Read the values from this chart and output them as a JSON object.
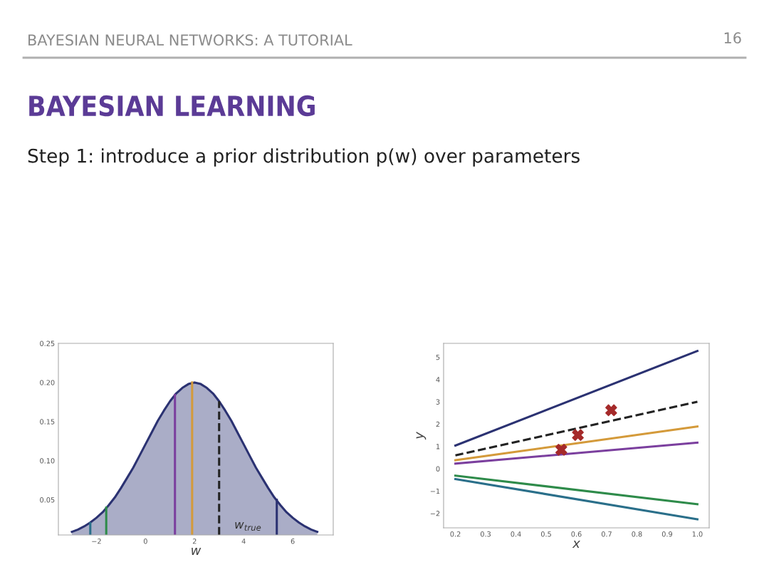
{
  "chart_data": [
    {
      "type": "area",
      "title": "BAYESIAN LEARNING",
      "subtitle": "Step 1: introduce a prior distribution p(w) over parameters",
      "annotations": [
        "BAYESIAN NEURAL NETWORKS: A TUTORIAL",
        "16",
        "w$_{true}$"
      ],
      "xlabel": "w",
      "x": [
        -3,
        -2.75,
        -2.5,
        -2.25,
        -2,
        -1.75,
        -1.5,
        -1.25,
        -1,
        -0.75,
        -0.5,
        -0.25,
        0,
        0.25,
        0.5,
        0.75,
        1,
        1.25,
        1.5,
        1.75,
        2,
        2.25,
        2.5,
        2.75,
        3,
        3.25,
        3.5,
        3.75,
        4,
        4.25,
        4.5,
        4.75,
        5,
        5.25,
        5.5,
        5.75,
        6,
        6.25,
        6.5,
        6.75,
        7
      ],
      "series": [
        {
          "color": "#2b3272",
          "values": [
            0.009,
            0.012,
            0.016,
            0.021,
            0.027,
            0.034,
            0.043,
            0.053,
            0.065,
            0.078,
            0.091,
            0.106,
            0.121,
            0.136,
            0.151,
            0.164,
            0.176,
            0.186,
            0.193,
            0.198,
            0.2,
            0.198,
            0.193,
            0.186,
            0.176,
            0.164,
            0.151,
            0.136,
            0.121,
            0.106,
            0.091,
            0.078,
            0.065,
            0.053,
            0.043,
            0.034,
            0.027,
            0.021,
            0.016,
            0.012,
            0.009
          ]
        },
        {
          "type": "line",
          "color": "#2a6f8a",
          "x": [
            -2.25,
            -2.25
          ],
          "values": [
            0.005,
            0.02
          ]
        },
        {
          "type": "line",
          "color": "#2e8b4a",
          "x": [
            -1.6,
            -1.6
          ],
          "values": [
            0.005,
            0.04
          ]
        },
        {
          "type": "line",
          "color": "#7b3f9e",
          "x": [
            1.2,
            1.2
          ],
          "values": [
            0.005,
            0.184
          ]
        },
        {
          "type": "line",
          "color": "#d49a3a",
          "x": [
            1.9,
            1.9
          ],
          "values": [
            0.005,
            0.2
          ]
        },
        {
          "type": "line",
          "color": "#222222",
          "x": [
            3.0,
            3.0
          ],
          "values": [
            0.005,
            0.176
          ],
          "line_style": "dashed"
        },
        {
          "type": "line",
          "color": "#2b3272",
          "x": [
            5.35,
            5.35
          ],
          "values": [
            0.005,
            0.05
          ]
        }
      ],
      "line_style": "solid",
      "xlim": [
        -3.55,
        7.65
      ],
      "ylim": [
        0.005,
        0.25
      ],
      "xticks": [
        {
          "value": -2,
          "label": "−2"
        },
        0,
        2,
        4,
        6
      ],
      "yticks": [
        0.05,
        {
          "value": 0.1,
          "label": "0.10"
        },
        0.15,
        {
          "value": 0.2,
          "label": "0.20"
        },
        0.25
      ],
      "grid": false,
      "legend": false
    },
    {
      "type": "line",
      "xlabel": "x",
      "ylabel": "y",
      "line_style": "solid",
      "marker": "none",
      "series": [
        {
          "color": "#2b3272",
          "x": [
            0.2,
            1.0
          ],
          "values": [
            1.04,
            5.28
          ]
        },
        {
          "color": "#222222",
          "x": [
            0.2,
            1.0
          ],
          "values": [
            0.6,
            3.0
          ],
          "line_style": "dashed"
        },
        {
          "color": "#d49a3a",
          "x": [
            0.2,
            1.0
          ],
          "values": [
            0.38,
            1.89
          ]
        },
        {
          "color": "#7b3f9e",
          "x": [
            0.2,
            1.0
          ],
          "values": [
            0.23,
            1.17
          ]
        },
        {
          "color": "#2e8b4a",
          "x": [
            0.2,
            1.0
          ],
          "values": [
            -0.31,
            -1.59
          ]
        },
        {
          "color": "#2a6f8a",
          "x": [
            0.2,
            1.0
          ],
          "values": [
            -0.46,
            -2.27
          ]
        },
        {
          "type": "scatter",
          "color": "#a52a2a",
          "marker": "cross",
          "x": [
            0.55,
            0.605,
            0.715
          ],
          "values": [
            0.85,
            1.51,
            2.62
          ]
        }
      ],
      "xlim": [
        0.161,
        1.039
      ],
      "ylim": [
        -2.65,
        5.62
      ],
      "xticks": [
        0.2,
        0.3,
        0.4,
        0.5,
        0.6,
        0.7,
        0.8,
        0.9,
        {
          "value": 1.0,
          "label": "1.0"
        }
      ],
      "yticks": [
        {
          "value": -2,
          "label": "−2"
        },
        {
          "value": -1,
          "label": "−1"
        },
        0,
        1,
        2,
        3,
        4,
        5
      ],
      "grid": false,
      "legend": false
    }
  ]
}
